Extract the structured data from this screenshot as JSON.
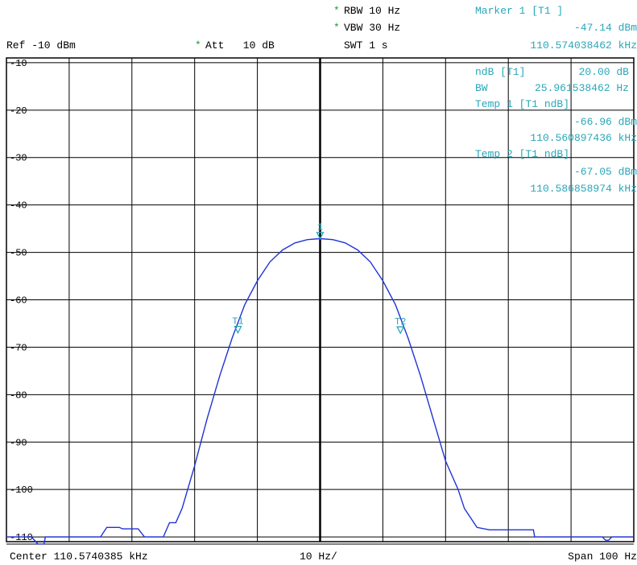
{
  "header": {
    "ref_label": "Ref -10 dBm",
    "att_star": "*",
    "att_label": "Att   10 dB",
    "rbw_star": "*",
    "rbw_label": "RBW 10 Hz",
    "vbw_star": "*",
    "vbw_label": "VBW 30 Hz",
    "swt_label": "SWT 1 s"
  },
  "marker_info": {
    "marker_title": "Marker 1 [T1 ]",
    "marker_level": "-47.14 dBm",
    "marker_freq": "110.574038462 kHz",
    "ndb_label": "ndB [T1]",
    "ndb_value": "20.00 dB",
    "bw_label": "BW",
    "bw_value": "25.961538462 Hz",
    "temp1_title": "Temp 1 [T1 ndB]",
    "temp1_level": "-66.96 dBm",
    "temp1_freq": "110.560897436 kHz",
    "temp2_title": "Temp 2 [T1 ndB]",
    "temp2_level": "-67.05 dBm",
    "temp2_freq": "110.586858974 kHz"
  },
  "footer": {
    "center_label": "Center 110.5740385 kHz",
    "div_label": "10 Hz/",
    "span_label": "Span 100 Hz"
  },
  "colors": {
    "trace": "#1f33d6",
    "marker": "#2aa7b8",
    "grid": "#000000"
  },
  "chart_data": {
    "type": "line",
    "x_unit": "Hz",
    "xlim": [
      -50,
      50
    ],
    "ylim": [
      -111,
      -9
    ],
    "y_ticks": [
      -10,
      -20,
      -30,
      -40,
      -50,
      -60,
      -70,
      -80,
      -90,
      -100,
      -110
    ],
    "grid": true,
    "series": [
      {
        "x": [
          -50,
          -46,
          -45,
          -44,
          -43.8,
          -41,
          -40,
          -39,
          -38.8,
          -35,
          -34,
          -32,
          -31.5,
          -29,
          -28,
          -27.5,
          -25,
          -24,
          -23,
          -22,
          -20,
          -18,
          -16,
          -14,
          -12,
          -10,
          -8,
          -6,
          -4,
          -2,
          0,
          2,
          4,
          6,
          8,
          10,
          12,
          14,
          16,
          18,
          20,
          21,
          22,
          23,
          24,
          25,
          27,
          30,
          33,
          34,
          34.2,
          45,
          45.5,
          46,
          46.5,
          47,
          50
        ],
        "y": [
          -110,
          -110,
          -111.5,
          -111.5,
          -110,
          -110,
          -110,
          -110,
          -110,
          -110,
          -108,
          -108,
          -108.3,
          -108.3,
          -110,
          -110,
          -110,
          -107,
          -107,
          -104,
          -95,
          -85,
          -76,
          -68,
          -61,
          -56,
          -52,
          -49.5,
          -48,
          -47.3,
          -47.1,
          -47.3,
          -48,
          -49.5,
          -52,
          -56,
          -61,
          -68,
          -76,
          -85,
          -94,
          -97,
          -100,
          -104,
          -106,
          -108,
          -108.5,
          -108.5,
          -108.5,
          -108.5,
          -110,
          -110,
          -110.7,
          -110.7,
          -110,
          -110,
          -110
        ]
      }
    ],
    "markers": [
      {
        "label": "1",
        "x": 0,
        "y": -47.14
      },
      {
        "label": "T1",
        "x": -13.1,
        "y": -66.96
      },
      {
        "label": "T2",
        "x": 12.8,
        "y": -67.05
      }
    ]
  }
}
